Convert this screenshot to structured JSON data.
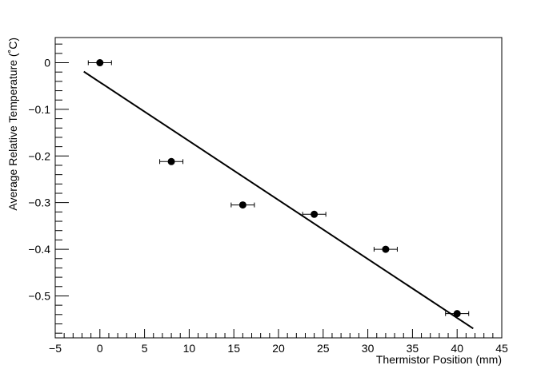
{
  "chart_data": {
    "type": "scatter",
    "title": "",
    "xlabel": "Thermistor Position (mm)",
    "ylabel": "Average Relative Temperature (˚C)",
    "xlim": [
      -5,
      45
    ],
    "ylim": [
      -0.59,
      0.054
    ],
    "x_ticks": [
      -5,
      0,
      5,
      10,
      15,
      20,
      25,
      30,
      35,
      40,
      45
    ],
    "y_ticks": [
      0,
      -0.1,
      -0.2,
      -0.3,
      -0.4,
      -0.5
    ],
    "x_tick_labels": [
      "−5",
      "0",
      "5",
      "10",
      "15",
      "20",
      "25",
      "30",
      "35",
      "40",
      "45"
    ],
    "y_tick_labels": [
      "0",
      "−0.1",
      "−0.2",
      "−0.3",
      "−0.4",
      "−0.5"
    ],
    "grid": false,
    "series": [
      {
        "type": "scatter",
        "x": [
          0,
          8,
          16,
          24,
          32,
          40
        ],
        "y": [
          0,
          -0.212,
          -0.305,
          -0.325,
          -0.4,
          -0.538
        ],
        "x_err": [
          1.3,
          1.3,
          1.3,
          1.3,
          1.3,
          1.3
        ],
        "color": "#000000"
      },
      {
        "type": "line",
        "fit": true,
        "x": [
          -1.8,
          41.8
        ],
        "y": [
          -0.019,
          -0.57
        ],
        "color": "#000000"
      }
    ]
  }
}
